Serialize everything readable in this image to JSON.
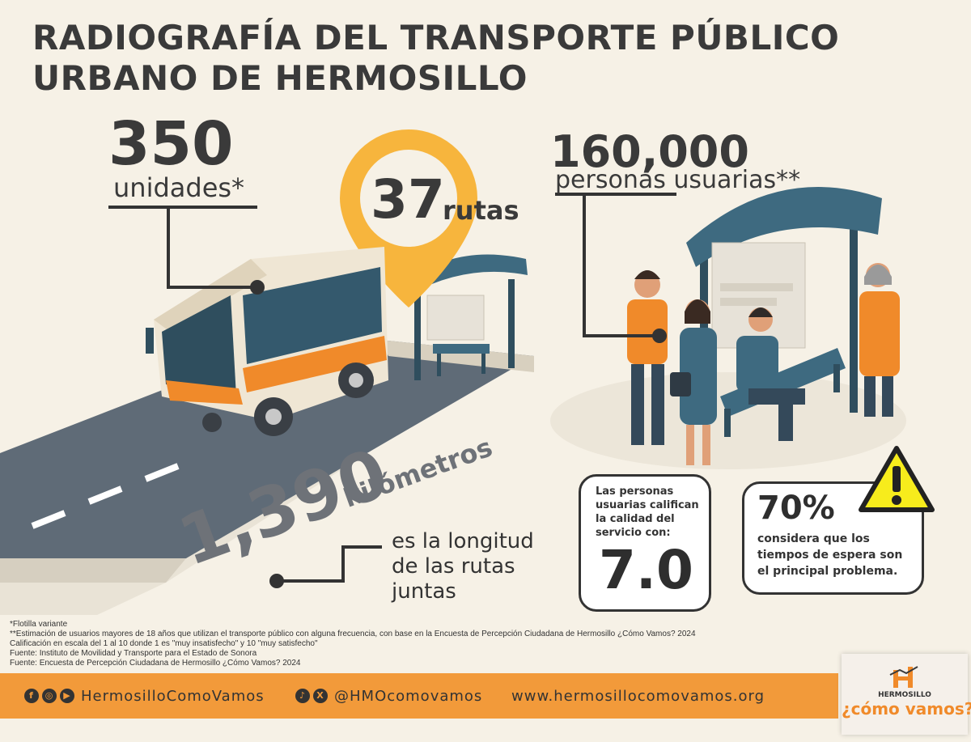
{
  "title": {
    "line1": "RADIOGRAFÍA DEL TRANSPORTE PÚBLICO",
    "line2": "URBANO DE HERMOSILLO"
  },
  "units": {
    "value": "350",
    "label": "unidades*"
  },
  "routes": {
    "value": "37",
    "label": "rutas"
  },
  "users": {
    "value": "160,000",
    "label": "personas usuarias**"
  },
  "length": {
    "value": "1,390",
    "unit": "kilómetros",
    "desc1": "es la longitud",
    "desc2": "de las rutas",
    "desc3": "juntas"
  },
  "rating": {
    "line1": "Las personas",
    "line2": "usuarias califican",
    "line3": "la calidad del",
    "line4": "servicio con:",
    "value": "7.0"
  },
  "wait": {
    "value": "70%",
    "line1": "considera que los",
    "line2": "tiempos de espera son",
    "line3": "el principal problema."
  },
  "notes": [
    "*Flotilla variante",
    "**Estimación de usuarios mayores de 18 años que utilizan el transporte público con alguna frecuencia, con base en la Encuesta de Percepción Ciudadana de Hermosillo ¿Cómo Vamos? 2024",
    "Calificación en escala del 1 al 10 donde 1 es \"muy insatisfecho\" y 10 \"muy satisfecho\"",
    "Fuente: Instituto de Movilidad y Transporte para el Estado de Sonora",
    "Fuente: Encuesta de Percepción Ciudadana de Hermosillo ¿Cómo Vamos? 2024"
  ],
  "footer": {
    "facebook_handle": "HermosilloComoVamos",
    "tiktok_handle": "@HMOcomovamos",
    "website": "www.hermosillocomovamos.org"
  },
  "logo": {
    "small": "HERMOSILLO",
    "big": "¿cómo vamos?"
  },
  "icons": {
    "facebook": "facebook-icon",
    "instagram": "instagram-icon",
    "youtube": "youtube-icon",
    "tiktok": "tiktok-icon",
    "x": "x-icon",
    "warning": "warning-icon",
    "pin": "map-pin-icon"
  },
  "colors": {
    "orange": "#f29a3a",
    "yellow_pin": "#f7b53d",
    "teal": "#3e6a80",
    "warning_yellow": "#f7ec1c",
    "background": "#f6f1e6",
    "text": "#3a3a3a"
  }
}
